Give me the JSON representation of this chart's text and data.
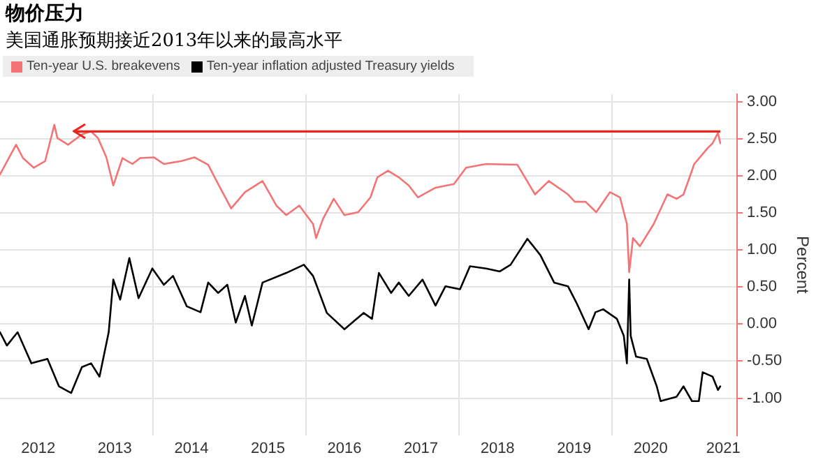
{
  "chart_data": {
    "type": "line",
    "title": "物价压力",
    "subtitle": "美国通胀预期接近2013年以来的最高水平",
    "ylabel": "Percent",
    "legend": "top left",
    "grid": true,
    "marker": "none",
    "line_style": "solid",
    "xlim": [
      2012,
      2021.63
    ],
    "ylim": [
      -1.5,
      3.1
    ],
    "xticks": [
      {
        "value": 2012.5,
        "label": "2012"
      },
      {
        "value": 2013.5,
        "label": "2013"
      },
      {
        "value": 2014,
        "label": null
      },
      {
        "value": 2014.5,
        "label": "2014"
      },
      {
        "value": 2015.5,
        "label": "2015"
      },
      {
        "value": 2016,
        "label": null
      },
      {
        "value": 2016.5,
        "label": "2016"
      },
      {
        "value": 2017.5,
        "label": "2017"
      },
      {
        "value": 2018,
        "label": null
      },
      {
        "value": 2018.5,
        "label": "2018"
      },
      {
        "value": 2019.5,
        "label": "2019"
      },
      {
        "value": 2020,
        "label": null
      },
      {
        "value": 2020.5,
        "label": "2020"
      },
      {
        "value": 2021.45,
        "label": "2021"
      }
    ],
    "yticks": [
      {
        "value": -1,
        "label": "-1.00"
      },
      {
        "value": -0.5,
        "label": "-0.50"
      },
      {
        "value": 0,
        "label": "0.00"
      },
      {
        "value": 0.5,
        "label": "0.50"
      },
      {
        "value": 1,
        "label": "1.00"
      },
      {
        "value": 1.5,
        "label": "1.50"
      },
      {
        "value": 2,
        "label": "2.00"
      },
      {
        "value": 2.5,
        "label": "2.50"
      },
      {
        "value": 3,
        "label": "3.00"
      }
    ],
    "ref_lines": [
      {
        "axis": "y",
        "value": 2.6,
        "color": "#e8281e"
      }
    ],
    "series": [
      {
        "name": "Ten-year U.S. breakevens",
        "color": "#f27474",
        "x": [
          2012.0,
          2012.21,
          2012.3,
          2012.44,
          2012.59,
          2012.71,
          2012.75,
          2012.89,
          2013.07,
          2013.19,
          2013.28,
          2013.39,
          2013.48,
          2013.6,
          2013.73,
          2013.83,
          2014.01,
          2014.14,
          2014.37,
          2014.54,
          2014.72,
          2014.85,
          2015.02,
          2015.2,
          2015.43,
          2015.61,
          2015.74,
          2015.91,
          2016.09,
          2016.13,
          2016.22,
          2016.36,
          2016.5,
          2016.68,
          2016.84,
          2016.93,
          2017.07,
          2017.21,
          2017.34,
          2017.46,
          2017.69,
          2017.93,
          2018.09,
          2018.35,
          2018.76,
          2018.99,
          2019.17,
          2019.42,
          2019.51,
          2019.65,
          2019.79,
          2019.97,
          2020.1,
          2020.19,
          2020.22,
          2020.27,
          2020.36,
          2020.54,
          2020.72,
          2020.84,
          2020.93,
          2021.07,
          2021.25,
          2021.31,
          2021.38,
          2021.41
        ],
        "values": [
          2.02,
          2.42,
          2.24,
          2.11,
          2.2,
          2.69,
          2.51,
          2.42,
          2.56,
          2.6,
          2.51,
          2.25,
          1.87,
          2.24,
          2.16,
          2.24,
          2.25,
          2.16,
          2.2,
          2.25,
          2.15,
          1.89,
          1.56,
          1.78,
          1.93,
          1.6,
          1.47,
          1.6,
          1.35,
          1.16,
          1.42,
          1.69,
          1.47,
          1.51,
          1.71,
          1.98,
          2.07,
          1.98,
          1.87,
          1.71,
          1.84,
          1.89,
          2.11,
          2.16,
          2.15,
          1.75,
          1.93,
          1.75,
          1.65,
          1.65,
          1.51,
          1.78,
          1.71,
          1.35,
          0.7,
          1.16,
          1.05,
          1.35,
          1.75,
          1.69,
          1.75,
          2.16,
          2.38,
          2.44,
          2.58,
          2.44
        ]
      },
      {
        "name": "Ten-year inflation adjusted Treasury yields",
        "color": "#000000",
        "x": [
          2012.0,
          2012.09,
          2012.23,
          2012.41,
          2012.62,
          2012.77,
          2012.93,
          2013.07,
          2013.19,
          2013.3,
          2013.42,
          2013.48,
          2013.57,
          2013.69,
          2013.81,
          2013.99,
          2014.14,
          2014.26,
          2014.44,
          2014.62,
          2014.72,
          2014.85,
          2014.97,
          2015.08,
          2015.2,
          2015.29,
          2015.43,
          2015.74,
          2015.97,
          2016.09,
          2016.27,
          2016.5,
          2016.75,
          2016.86,
          2016.95,
          2017.11,
          2017.21,
          2017.34,
          2017.52,
          2017.69,
          2017.82,
          2018.01,
          2018.14,
          2018.35,
          2018.53,
          2018.67,
          2018.89,
          2019.06,
          2019.24,
          2019.42,
          2019.53,
          2019.69,
          2019.78,
          2019.88,
          2020.06,
          2020.15,
          2020.19,
          2020.22,
          2020.24,
          2020.31,
          2020.45,
          2020.58,
          2020.63,
          2020.84,
          2020.93,
          2021.04,
          2021.13,
          2021.18,
          2021.31,
          2021.38,
          2021.41
        ],
        "values": [
          -0.11,
          -0.29,
          -0.11,
          -0.53,
          -0.47,
          -0.84,
          -0.93,
          -0.58,
          -0.53,
          -0.71,
          -0.11,
          0.6,
          0.33,
          0.89,
          0.35,
          0.75,
          0.53,
          0.65,
          0.24,
          0.16,
          0.56,
          0.42,
          0.53,
          0.02,
          0.38,
          -0.02,
          0.56,
          0.69,
          0.8,
          0.65,
          0.15,
          -0.07,
          0.15,
          0.07,
          0.69,
          0.42,
          0.56,
          0.38,
          0.6,
          0.25,
          0.51,
          0.47,
          0.78,
          0.75,
          0.71,
          0.8,
          1.15,
          0.93,
          0.56,
          0.51,
          0.29,
          -0.07,
          0.16,
          0.2,
          0.07,
          -0.16,
          -0.53,
          0.6,
          -0.16,
          -0.44,
          -0.47,
          -0.84,
          -1.04,
          -0.98,
          -0.84,
          -1.04,
          -1.04,
          -0.65,
          -0.71,
          -0.89,
          -0.84
        ]
      }
    ]
  }
}
